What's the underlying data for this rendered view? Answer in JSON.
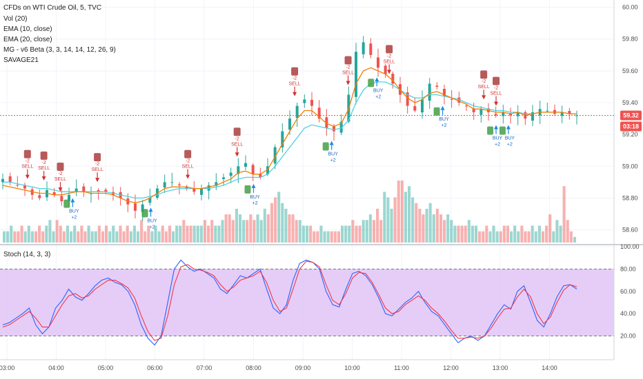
{
  "legend": {
    "title": "CFDs on WTI Crude Oil, 5, TVC",
    "lines": [
      "Vol (20)",
      "EMA (10, close)",
      "EMA (20, close)",
      "MG - v6 Beta (3, 3, 14, 14, 12, 26, 9)",
      "SAVAGE21"
    ]
  },
  "stoch_label": "Stoch (14, 3, 3)",
  "price_badges": {
    "last_price": "59.32",
    "countdown": "03:18"
  },
  "colors": {
    "up": "#26a69a",
    "down": "#ef5350",
    "ema10": "#f57c00",
    "ema20": "#4dd0e1",
    "stoch_k": "#2962ff",
    "stoch_d": "#f23645",
    "stoch_band": "#e1c4f7",
    "price_line": "#ef5350"
  },
  "chart_data": [
    {
      "type": "candlestick",
      "title": "CFDs on WTI Crude Oil, 5, TVC",
      "x_ticks": [
        "03:00",
        "04:00",
        "05:00",
        "06:00",
        "07:00",
        "08:00",
        "09:00",
        "10:00",
        "11:00",
        "12:00",
        "13:00",
        "14:00"
      ],
      "y_ticks": [
        "60.00",
        "59.80",
        "59.60",
        "59.40",
        "59.20",
        "59.00",
        "58.80",
        "58.60"
      ],
      "y_range": [
        58.52,
        60.02
      ],
      "last_price": 59.32,
      "close_path": [
        58.92,
        58.9,
        58.88,
        58.86,
        58.82,
        58.8,
        58.85,
        58.82,
        58.78,
        58.82,
        58.86,
        58.84,
        58.83,
        58.84,
        58.84,
        58.82,
        58.8,
        58.76,
        58.72,
        58.76,
        58.8,
        58.86,
        58.9,
        58.9,
        58.88,
        58.86,
        58.84,
        58.86,
        58.88,
        58.9,
        58.93,
        58.96,
        59.0,
        59.02,
        58.95,
        58.93,
        59.0,
        59.12,
        59.22,
        59.3,
        59.38,
        59.42,
        59.38,
        59.3,
        59.24,
        59.22,
        59.28,
        59.45,
        59.72,
        59.78,
        59.7,
        59.62,
        59.58,
        59.52,
        59.45,
        59.38,
        59.35,
        59.42,
        59.52,
        59.5,
        59.44,
        59.42,
        59.4,
        59.38,
        59.34,
        59.36,
        59.34,
        59.32,
        59.34,
        59.32,
        59.34,
        59.3,
        59.34,
        59.36,
        59.35,
        59.33,
        59.34,
        59.33,
        59.32
      ],
      "ema_10_path": [
        58.88,
        58.87,
        58.86,
        58.85,
        58.84,
        58.83,
        58.83,
        58.82,
        58.82,
        58.83,
        58.84,
        58.84,
        58.83,
        58.83,
        58.83,
        58.82,
        58.8,
        58.78,
        58.77,
        58.78,
        58.8,
        58.83,
        58.86,
        58.87,
        58.87,
        58.87,
        58.86,
        58.86,
        58.87,
        58.88,
        58.9,
        58.92,
        58.96,
        58.97,
        58.95,
        58.95,
        58.98,
        59.06,
        59.14,
        59.22,
        59.3,
        59.35,
        59.35,
        59.31,
        59.27,
        59.25,
        59.27,
        59.36,
        59.52,
        59.6,
        59.62,
        59.6,
        59.58,
        59.54,
        59.48,
        59.43,
        59.4,
        59.42,
        59.46,
        59.47,
        59.45,
        59.43,
        59.41,
        59.39,
        59.36,
        59.36,
        59.35,
        59.34,
        59.34,
        59.33,
        59.34,
        59.32,
        59.33,
        59.34,
        59.34,
        59.34,
        59.34,
        59.33,
        59.33
      ],
      "ema_20_path": [
        58.9,
        58.9,
        58.89,
        58.88,
        58.87,
        58.86,
        58.86,
        58.85,
        58.84,
        58.84,
        58.84,
        58.84,
        58.84,
        58.84,
        58.84,
        58.83,
        58.82,
        58.81,
        58.8,
        58.8,
        58.81,
        58.82,
        58.84,
        58.85,
        58.86,
        58.86,
        58.86,
        58.86,
        58.86,
        58.87,
        58.88,
        58.9,
        58.92,
        58.93,
        58.93,
        58.93,
        58.95,
        59.0,
        59.06,
        59.12,
        59.18,
        59.24,
        59.26,
        59.25,
        59.24,
        59.23,
        59.24,
        59.29,
        59.4,
        59.48,
        59.52,
        59.53,
        59.53,
        59.51,
        59.48,
        59.45,
        59.43,
        59.43,
        59.45,
        59.45,
        59.44,
        59.43,
        59.42,
        59.4,
        59.38,
        59.37,
        59.36,
        59.35,
        59.35,
        59.34,
        59.34,
        59.33,
        59.33,
        59.34,
        59.34,
        59.34,
        59.34,
        59.33,
        59.33
      ],
      "annotations": {
        "sell_label": "SELL",
        "buy_label": "BUY",
        "sell_tag": "-2",
        "buy_tag": "+2",
        "sell_times": [
          "03:25",
          "03:45",
          "04:05",
          "04:50",
          "06:40",
          "07:40",
          "08:50",
          "09:55",
          "10:45",
          "12:40",
          "12:55"
        ],
        "buy_times": [
          "04:20",
          "05:55",
          "08:00",
          "09:35",
          "10:30",
          "11:50",
          "12:55",
          "13:10"
        ]
      }
    },
    {
      "type": "bar",
      "title": "Vol (20)",
      "note": "volume histogram, heights relative",
      "values": [
        2,
        2,
        3,
        2,
        2,
        3,
        2,
        3,
        2,
        2,
        3,
        2,
        3,
        4,
        2,
        4,
        3,
        2,
        3,
        2,
        3,
        2,
        3,
        2,
        3,
        2,
        2,
        3,
        2,
        3,
        2,
        3,
        2,
        3,
        2,
        3,
        2,
        3,
        2,
        4,
        2,
        3,
        2,
        3,
        2,
        3,
        2,
        3,
        2,
        3,
        3,
        4,
        3,
        3,
        3,
        3,
        3,
        4,
        3,
        4,
        3,
        3,
        4,
        5,
        5,
        4,
        6,
        5,
        4,
        4,
        5,
        4,
        5,
        4,
        6,
        5,
        7,
        8,
        9,
        7,
        6,
        5,
        5,
        4,
        4,
        3,
        3,
        3,
        2,
        2,
        3,
        2,
        2,
        2,
        2,
        2,
        3,
        3,
        3,
        4,
        3,
        3,
        4,
        4,
        5,
        4,
        6,
        4,
        9,
        8,
        6,
        8,
        11,
        11,
        9,
        10,
        8,
        7,
        6,
        5,
        6,
        7,
        5,
        6,
        5,
        4,
        5,
        4,
        3,
        3,
        3,
        3,
        4,
        3,
        3,
        2,
        2,
        3,
        2,
        3,
        2,
        2,
        3,
        3,
        2,
        3,
        2,
        3,
        2,
        2,
        3,
        2,
        3,
        2,
        3,
        5,
        2,
        4,
        3,
        10,
        4,
        2,
        1
      ]
    },
    {
      "type": "line",
      "title": "Stoch (14, 3, 3)",
      "y_ticks": [
        "100.00",
        "80.00",
        "60.00",
        "40.00",
        "20.00"
      ],
      "y_range": [
        0,
        100
      ],
      "band": [
        20,
        80
      ],
      "series": [
        {
          "values": [
            30,
            32,
            36,
            40,
            45,
            30,
            22,
            28,
            45,
            52,
            62,
            55,
            52,
            58,
            65,
            70,
            72,
            68,
            66,
            60,
            48,
            30,
            18,
            12,
            20,
            50,
            80,
            88,
            82,
            78,
            80,
            76,
            72,
            62,
            58,
            66,
            74,
            72,
            76,
            80,
            62,
            45,
            40,
            48,
            70,
            85,
            88,
            86,
            80,
            60,
            48,
            46,
            62,
            76,
            78,
            74,
            66,
            54,
            40,
            38,
            44,
            50,
            54,
            60,
            50,
            42,
            38,
            30,
            22,
            14,
            18,
            20,
            16,
            20,
            30,
            40,
            48,
            44,
            60,
            65,
            50,
            34,
            28,
            40,
            55,
            65,
            66,
            62
          ]
        },
        {
          "values": [
            28,
            30,
            34,
            38,
            42,
            36,
            28,
            28,
            38,
            48,
            56,
            58,
            54,
            56,
            62,
            66,
            70,
            70,
            67,
            63,
            54,
            38,
            24,
            16,
            18,
            38,
            66,
            82,
            84,
            80,
            79,
            77,
            74,
            66,
            60,
            64,
            70,
            72,
            74,
            78,
            68,
            52,
            42,
            45,
            62,
            80,
            87,
            86,
            82,
            66,
            52,
            48,
            58,
            72,
            77,
            76,
            68,
            57,
            45,
            40,
            42,
            48,
            52,
            56,
            52,
            45,
            40,
            33,
            25,
            18,
            18,
            19,
            18,
            20,
            27,
            36,
            44,
            45,
            55,
            62,
            55,
            40,
            31,
            37,
            50,
            61,
            66,
            64
          ]
        }
      ]
    }
  ]
}
